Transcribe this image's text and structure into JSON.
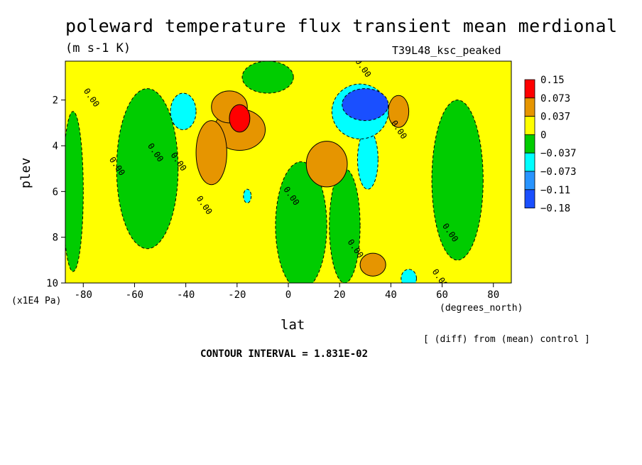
{
  "title": "poleward temperature flux transient mean merdional",
  "units": "(m s-1 K)",
  "run_label": "T39L48_ksc_peaked",
  "chart_data": {
    "type": "heatmap",
    "xlabel": "lat",
    "ylabel": "plev",
    "x_units": "(degrees_north)",
    "y_units": "(x1E4 Pa)",
    "x_ticks": [
      -80,
      -60,
      -40,
      -20,
      0,
      20,
      40,
      60,
      80
    ],
    "y_ticks": [
      2,
      4,
      6,
      8,
      10
    ],
    "xlim": [
      -87,
      87
    ],
    "ylim": [
      0.3,
      10
    ],
    "y_inverted": true,
    "contour_label": "0.00",
    "colorbar": {
      "labels": [
        "0.15",
        "0.073",
        "0.037",
        "0",
        "−0.037",
        "−0.073",
        "−0.11",
        "−0.18"
      ],
      "colors": [
        "#ff0000",
        "#e69500",
        "#ffff00",
        "#00cc00",
        "#00ffff",
        "#2894ff",
        "#1a4fff"
      ]
    },
    "features": [
      {
        "lat": -23,
        "plev": 2.3,
        "value": 0.06,
        "rx": 7,
        "ry": 0.7
      },
      {
        "lat": -19,
        "plev": 3.3,
        "value": 0.05,
        "rx": 10,
        "ry": 0.9
      },
      {
        "lat": -30,
        "plev": 4.3,
        "value": 0.05,
        "rx": 6,
        "ry": 1.4
      },
      {
        "lat": -19,
        "plev": 2.8,
        "value": 0.1,
        "rx": 4,
        "ry": 0.6
      },
      {
        "lat": 15,
        "plev": 4.8,
        "value": 0.05,
        "rx": 8,
        "ry": 1.0
      },
      {
        "lat": 43,
        "plev": 2.5,
        "value": 0.05,
        "rx": 4,
        "ry": 0.7
      },
      {
        "lat": 33,
        "plev": 9.2,
        "value": 0.04,
        "rx": 5,
        "ry": 0.5
      },
      {
        "lat": 30,
        "plev": 2.2,
        "value": -0.12,
        "rx": 9,
        "ry": 0.7
      },
      {
        "lat": 28,
        "plev": 2.5,
        "value": -0.06,
        "rx": 11,
        "ry": 1.2
      },
      {
        "lat": 31,
        "plev": 4.6,
        "value": -0.05,
        "rx": 4,
        "ry": 1.3
      },
      {
        "lat": -41,
        "plev": 2.5,
        "value": -0.05,
        "rx": 5,
        "ry": 0.8
      },
      {
        "lat": -16,
        "plev": 6.2,
        "value": -0.05,
        "rx": 1.5,
        "ry": 0.3
      },
      {
        "lat": 47,
        "plev": 9.8,
        "value": -0.05,
        "rx": 3,
        "ry": 0.4
      },
      {
        "lat": -55,
        "plev": 5,
        "value": -0.02,
        "rx": 12,
        "ry": 3.5
      },
      {
        "lat": 5,
        "plev": 7.5,
        "value": -0.02,
        "rx": 10,
        "ry": 2.8
      },
      {
        "lat": 66,
        "plev": 5.5,
        "value": -0.02,
        "rx": 10,
        "ry": 3.5
      },
      {
        "lat": -84,
        "plev": 6,
        "value": -0.02,
        "rx": 4,
        "ry": 3.5
      },
      {
        "lat": -8,
        "plev": 1.0,
        "value": -0.02,
        "rx": 10,
        "ry": 0.7
      },
      {
        "lat": 22,
        "plev": 7.5,
        "value": -0.02,
        "rx": 6,
        "ry": 2.5
      }
    ]
  },
  "footer": {
    "diff_note": "[ (diff) from (mean) control ]",
    "contour_interval": "CONTOUR INTERVAL = 1.831E-02"
  }
}
